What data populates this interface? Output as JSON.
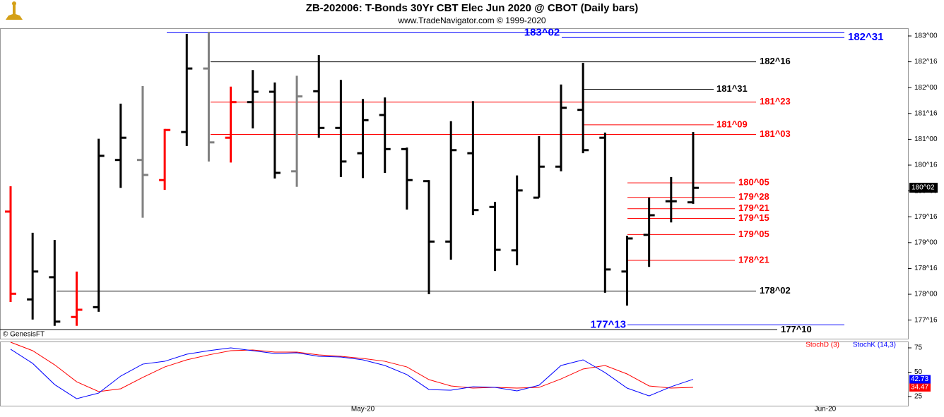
{
  "chart_data": {
    "type": "ohlc",
    "title": "ZB-202006:  T-Bonds 30Yr CBT Elec Jun 2020 @ CBOT  (Daily bars)",
    "subtitle": "www.TradeNavigator.com © 1999-2020",
    "watermark": "© GenesisFT",
    "categories": [
      null,
      null,
      null,
      null,
      null,
      null,
      null,
      null,
      null,
      null,
      null,
      null,
      null,
      null,
      null,
      null,
      "May-20",
      null,
      null,
      null,
      null,
      null,
      null,
      null,
      null,
      null,
      null,
      null,
      null,
      null,
      null,
      null,
      null,
      null,
      null,
      null,
      null,
      "Jun-20",
      null,
      null,
      null
    ],
    "open": [
      179.6,
      177.9,
      178.33,
      177.56,
      177.75,
      180.6,
      180.6,
      180.21,
      181.14,
      182.37,
      181.03,
      181.72,
      181.92,
      180.38,
      181.93,
      181.22,
      180.73,
      181.47,
      180.81,
      180.19,
      179.02,
      180.73,
      179.69,
      178.85,
      179.87,
      180.47,
      181.57,
      181.03,
      178.44,
      179.15,
      179.8,
      179.78,
      null,
      null,
      null,
      null,
      null,
      null,
      null,
      null,
      null
    ],
    "high": [
      180.09,
      179.19,
      179.05,
      178.44,
      181.01,
      181.69,
      182.03,
      181.2,
      183.04,
      183.08,
      182.02,
      182.34,
      182.1,
      182.23,
      182.63,
      182.15,
      181.78,
      181.81,
      180.84,
      180.21,
      181.35,
      181.74,
      179.79,
      180.3,
      181.06,
      182.06,
      182.48,
      181.13,
      179.13,
      179.87,
      180.27,
      181.14,
      null,
      null,
      null,
      null,
      null,
      null,
      null,
      null,
      null
    ],
    "low": [
      177.85,
      177.51,
      177.39,
      177.39,
      177.66,
      180.06,
      179.48,
      180.02,
      180.87,
      180.57,
      180.55,
      181.21,
      180.24,
      180.08,
      181.03,
      180.27,
      180.25,
      180.35,
      179.64,
      178.0,
      178.67,
      179.53,
      178.45,
      178.56,
      179.87,
      180.38,
      180.73,
      178.03,
      177.78,
      178.53,
      179.39,
      179.75,
      null,
      null,
      null,
      null,
      null,
      null,
      null,
      null,
      null
    ],
    "close": [
      178.01,
      178.44,
      177.47,
      177.7,
      180.68,
      181.03,
      180.31,
      181.18,
      182.37,
      180.94,
      181.72,
      181.92,
      180.35,
      181.83,
      181.22,
      180.57,
      181.37,
      180.81,
      180.21,
      179.02,
      180.79,
      179.63,
      178.86,
      180.01,
      180.47,
      181.61,
      180.79,
      178.48,
      179.08,
      179.53,
      179.8,
      180.06,
      null,
      null,
      null,
      null,
      null,
      null,
      null,
      null,
      null
    ],
    "bar_colors": [
      "#ff0000",
      "#000000",
      "#000000",
      "#ff0000",
      "#000000",
      "#000000",
      "#808080",
      "#ff0000",
      "#000000",
      "#808080",
      "#ff0000",
      "#000000",
      "#000000",
      "#808080",
      "#000000",
      "#000000",
      "#000000",
      "#000000",
      "#000000",
      "#000000",
      "#000000",
      "#000000",
      "#000000",
      "#000000",
      "#000000",
      "#000000",
      "#000000",
      "#000000",
      "#000000",
      "#000000",
      "#000000",
      "#000000",
      null,
      null,
      null,
      null,
      null,
      null,
      null,
      null,
      null
    ],
    "ylim": [
      177.14,
      183.15
    ],
    "yticks": [
      {
        "value": 183,
        "label": "183^00"
      },
      {
        "value": 182.5,
        "label": "182^16"
      },
      {
        "value": 182,
        "label": "182^00"
      },
      {
        "value": 181.5,
        "label": "181^16"
      },
      {
        "value": 181,
        "label": "181^00"
      },
      {
        "value": 180.5,
        "label": "180^16"
      },
      {
        "value": 180,
        "label": "180^00"
      },
      {
        "value": 179.5,
        "label": "179^16"
      },
      {
        "value": 179,
        "label": "179^00"
      },
      {
        "value": 178.5,
        "label": "178^16"
      },
      {
        "value": 178,
        "label": "178^00"
      },
      {
        "value": 177.5,
        "label": "177^16"
      }
    ],
    "last_price": {
      "value": 180.0625,
      "label": "180^02"
    },
    "levels": [
      {
        "value": 183.0625,
        "label": "183^02",
        "color": "#0000ff"
      },
      {
        "value": 182.96875,
        "label": "182^31",
        "color": "#0000ff"
      },
      {
        "value": 182.5,
        "label": "182^16",
        "color": "#000000"
      },
      {
        "value": 181.96875,
        "label": "181^31",
        "color": "#000000"
      },
      {
        "value": 181.71875,
        "label": "181^23",
        "color": "#ff0000"
      },
      {
        "value": 181.28125,
        "label": "181^09",
        "color": "#ff0000"
      },
      {
        "value": 181.09375,
        "label": "181^03",
        "color": "#ff0000"
      },
      {
        "value": 180.15625,
        "label": "180^05",
        "color": "#ff0000"
      },
      {
        "value": 179.875,
        "label": "179^28",
        "color": "#ff0000"
      },
      {
        "value": 179.65625,
        "label": "179^21",
        "color": "#ff0000"
      },
      {
        "value": 179.46875,
        "label": "179^15",
        "color": "#ff0000"
      },
      {
        "value": 179.15625,
        "label": "179^05",
        "color": "#ff0000"
      },
      {
        "value": 178.65625,
        "label": "178^21",
        "color": "#ff0000"
      },
      {
        "value": 178.0625,
        "label": "178^02",
        "color": "#000000"
      },
      {
        "value": 177.40625,
        "label": "177^13",
        "color": "#0000ff"
      },
      {
        "value": 177.3125,
        "label": "177^10",
        "color": "#000000"
      }
    ],
    "indicator": {
      "type": "line",
      "ylim": [
        15.6,
        80.8
      ],
      "yticks": [
        75,
        50,
        25
      ],
      "series": [
        {
          "name": "StochD (3)",
          "color": "#ff0000",
          "values": [
            80.8,
            72.1,
            57.6,
            40.2,
            30.1,
            33.0,
            44.6,
            55.4,
            62.7,
            67.8,
            72.1,
            72.8,
            70.7,
            70.7,
            67.8,
            66.3,
            64.1,
            61.2,
            55.4,
            42.4,
            35.9,
            33.7,
            34.4,
            33.7,
            34.4,
            43.1,
            53.3,
            56.9,
            48.2,
            35.9,
            33.7,
            34.47,
            null,
            null,
            null,
            null,
            null,
            null,
            null,
            null,
            null
          ]
        },
        {
          "name": "StochK (14,3)",
          "color": "#0000ff",
          "values": [
            73.6,
            59.1,
            37.3,
            22.8,
            28.6,
            46.0,
            58.3,
            61.2,
            68.5,
            72.1,
            75.0,
            72.1,
            69.2,
            69.9,
            66.3,
            65.6,
            62.7,
            56.9,
            47.5,
            32.2,
            31.5,
            35.1,
            34.4,
            30.8,
            36.6,
            56.9,
            62.7,
            49.6,
            33.7,
            25.7,
            35.1,
            42.73,
            null,
            null,
            null,
            null,
            null,
            null,
            null,
            null,
            null
          ]
        }
      ]
    }
  }
}
